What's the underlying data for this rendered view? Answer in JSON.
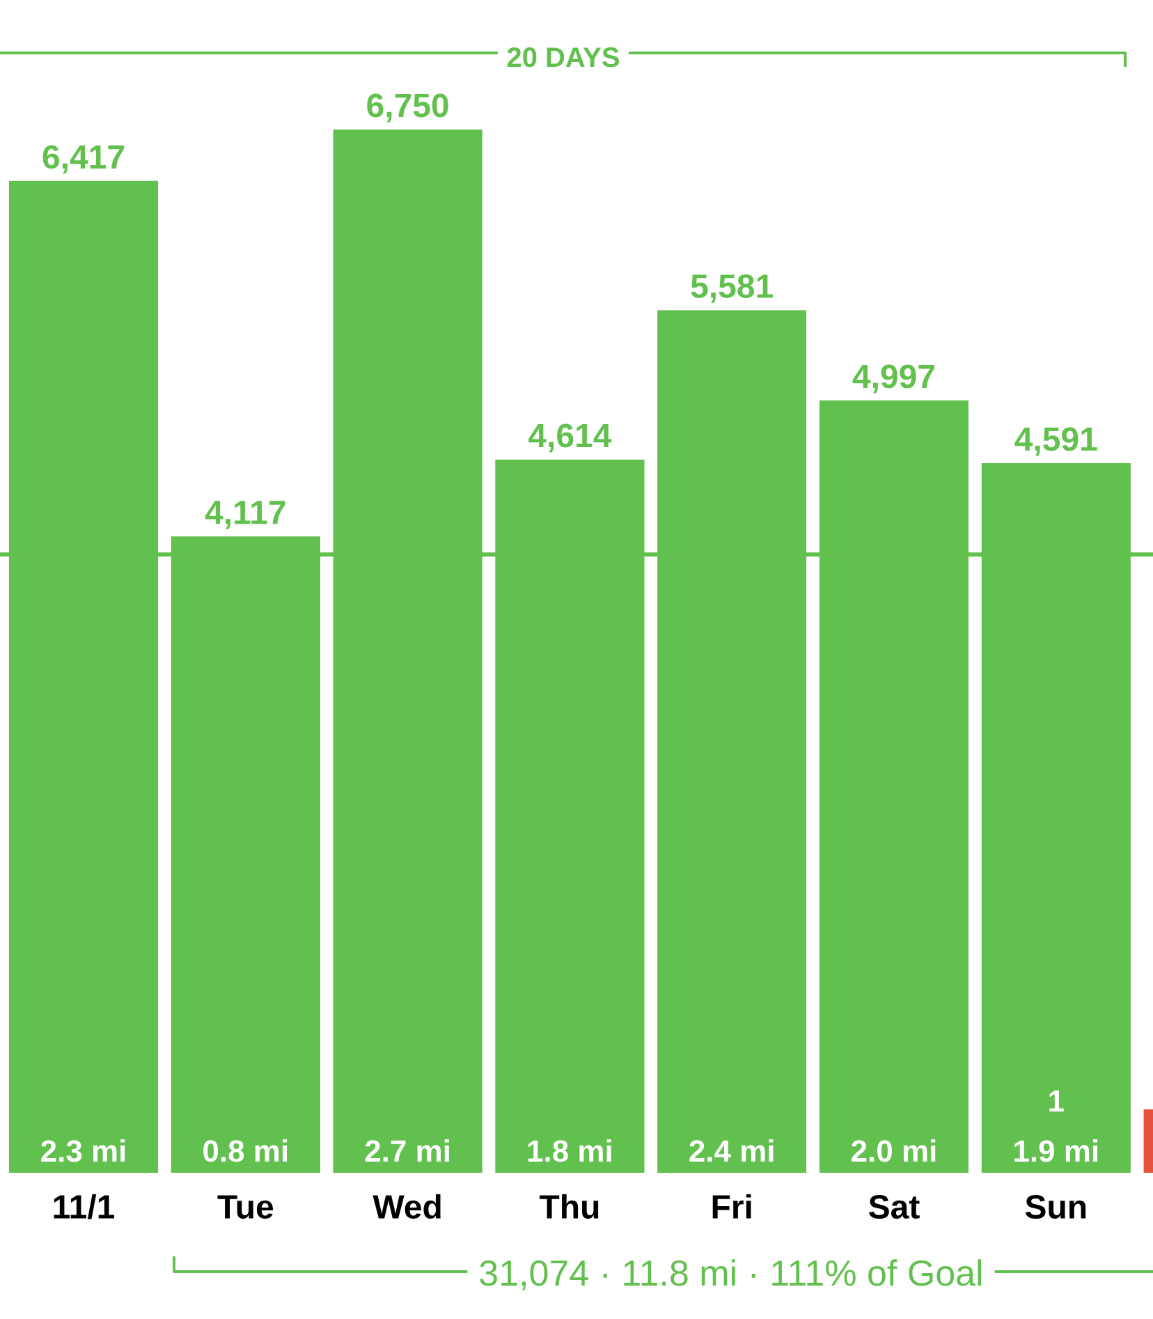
{
  "chart_data": {
    "type": "bar",
    "title": "20 DAYS",
    "categories": [
      "11/1",
      "Tue",
      "Wed",
      "Thu",
      "Fri",
      "Sat",
      "Sun",
      null
    ],
    "values": [
      6417,
      4117,
      6750,
      4614,
      5581,
      4997,
      4591,
      410
    ],
    "colors": [
      "#62c04e",
      "#62c04e",
      "#62c04e",
      "#62c04e",
      "#62c04e",
      "#62c04e",
      "#62c04e",
      "#e5533d"
    ],
    "value_labels": [
      "6,417",
      "4,117",
      "6,750",
      "4,614",
      "5,581",
      "4,997",
      "4,591",
      null
    ],
    "ref_lines": [
      {
        "axis": "y",
        "value": 4000,
        "color": "#62c04e"
      }
    ],
    "tick_labels": "x",
    "annotations": [
      "2.3 mi",
      "0.8 mi",
      "2.7 mi",
      "1.8 mi",
      "2.4 mi",
      "2.0 mi",
      "1.9 mi",
      "1",
      "31,074 · 11.8 mi · 111% of Goal"
    ]
  }
}
